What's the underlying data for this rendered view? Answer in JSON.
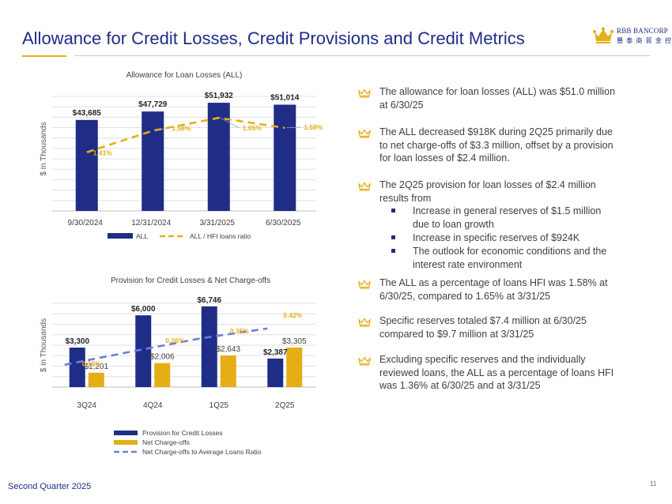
{
  "page": {
    "title": "Allowance for Credit Losses, Credit Provisions and Credit Metrics",
    "footer_left": "Second Quarter 2025",
    "page_number": "11",
    "colors": {
      "navy": "#1f2d87",
      "gold": "#e5ae16",
      "dash_blue": "#6b7fe0"
    }
  },
  "logo": {
    "name": "RBB BANCORP",
    "chinese": "豐 泰 商 貿 金 控",
    "icon": "crown-logo-icon"
  },
  "bullets": [
    {
      "text": "The allowance for loan losses (ALL) was $51.0 million at 6/30/25"
    },
    {
      "text": "The ALL decreased $918K during 2Q25 primarily due to net charge-offs of $3.3 million, offset by a provision for loan losses of $2.4 million."
    },
    {
      "text": "The 2Q25 provision for loan losses of $2.4 million results from",
      "sub": [
        "Increase in general reserves of $1.5 million due to loan growth",
        "Increase in specific reserves of $924K",
        "The outlook for economic conditions and the interest rate environment"
      ]
    },
    {
      "text": "The ALL as a percentage of loans HFI was 1.58% at 6/30/25, compared to 1.65% at 3/31/25"
    },
    {
      "text": "Specific reserves totaled $7.4 million at 6/30/25 compared to  $9.7 million at 3/31/25"
    },
    {
      "text": "Excluding specific reserves and the individually reviewed loans, the ALL as a percentage of loans HFI was 1.36% at 6/30/25  and at 3/31/25"
    }
  ],
  "chart_data": [
    {
      "type": "bar",
      "title": "Allowance for Loan Losses (ALL)",
      "ylabel": "$ in Thousands",
      "xlabel": "",
      "ylim": [
        0,
        55000
      ],
      "secondary_ylim": [
        1.0,
        1.8
      ],
      "grid": true,
      "legend_position": "bottom",
      "categories": [
        "9/30/2024",
        "12/31/2024",
        "3/31/2025",
        "6/30/2025"
      ],
      "series": [
        {
          "name": "ALL",
          "kind": "bar",
          "color": "#1f2d87",
          "values": [
            43685,
            47729,
            51932,
            51014
          ],
          "labels": [
            "$43,685",
            "$47,729",
            "$51,932",
            "$51,014"
          ]
        },
        {
          "name": "ALL / HFI loans ratio",
          "kind": "line-dashed",
          "color": "#e5ae16",
          "axis": "secondary",
          "values": [
            1.41,
            1.56,
            1.65,
            1.58
          ],
          "labels": [
            "1.41%",
            "1.56%",
            "1.65%",
            "1.58%"
          ]
        }
      ]
    },
    {
      "type": "bar",
      "title": "Provision for Credit Losses & Net Charge-offs",
      "ylabel": "$ in Thousands",
      "xlabel": "",
      "ylim": [
        0,
        7000
      ],
      "secondary_ylim": [
        0.0,
        0.6
      ],
      "grid": true,
      "legend_position": "bottom",
      "categories": [
        "3Q24",
        "4Q24",
        "1Q25",
        "2Q25"
      ],
      "series": [
        {
          "name": "Provision for Credit Losses",
          "kind": "bar",
          "color": "#1f2d87",
          "values": [
            3300,
            6000,
            6746,
            2387
          ],
          "labels": [
            "$3,300",
            "$6,000",
            "$6,746",
            "$2,387"
          ]
        },
        {
          "name": "Net Charge-offs",
          "kind": "bar",
          "color": "#e5ae16",
          "values": [
            1201,
            2006,
            2643,
            3305
          ],
          "labels": [
            "$1,201",
            "$2,006",
            "$2,643",
            "$3,305"
          ]
        },
        {
          "name": "Net Charge-offs to Average Loans Ratio",
          "kind": "line-dashed",
          "color": "#6b7fe0",
          "axis": "secondary",
          "values": [
            0.16,
            0.26,
            0.35,
            0.42
          ],
          "labels": [
            "0.16%",
            "0.26%",
            "0.35%",
            "0.42%"
          ]
        }
      ]
    }
  ]
}
